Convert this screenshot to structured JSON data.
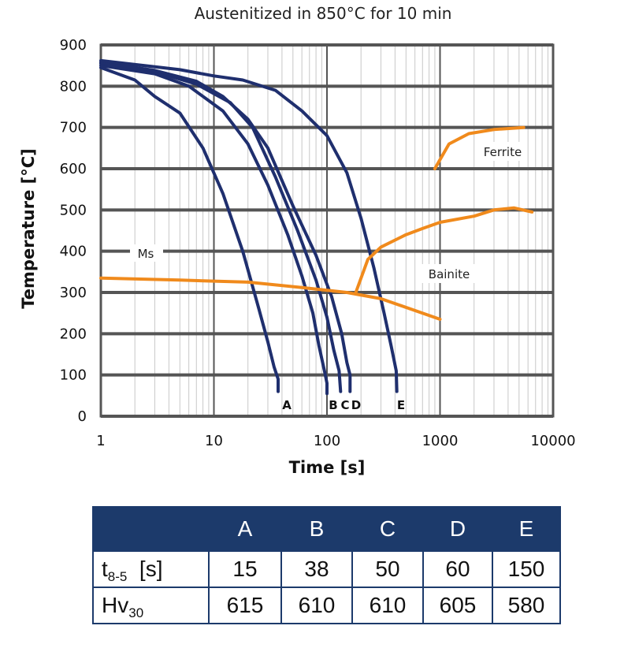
{
  "chart_data": {
    "type": "line",
    "title": "Austenitized in 850°C for 10 min",
    "xlabel": "Time [s]",
    "ylabel": "Temperature [°C]",
    "xscale": "log",
    "xlim": [
      1,
      10000
    ],
    "ylim": [
      0,
      900
    ],
    "x_ticks": [
      "1",
      "10",
      "100",
      "1000",
      "10000"
    ],
    "y_ticks": [
      "0",
      "100",
      "200",
      "300",
      "400",
      "500",
      "600",
      "700",
      "800",
      "900"
    ],
    "grid": true,
    "colors": {
      "cooling": "#1f2f6e",
      "transformation": "#f08a1c",
      "grid": "#555555"
    },
    "series": [
      {
        "name": "A",
        "role": "cooling",
        "points": [
          [
            1,
            845
          ],
          [
            2,
            815
          ],
          [
            3,
            775
          ],
          [
            5,
            735
          ],
          [
            8,
            650
          ],
          [
            12,
            540
          ],
          [
            18,
            400
          ],
          [
            25,
            260
          ],
          [
            30,
            180
          ],
          [
            34,
            120
          ],
          [
            37,
            90
          ],
          [
            37,
            60
          ]
        ]
      },
      {
        "name": "B",
        "role": "cooling",
        "points": [
          [
            1,
            850
          ],
          [
            3,
            830
          ],
          [
            6,
            800
          ],
          [
            12,
            740
          ],
          [
            20,
            660
          ],
          [
            30,
            560
          ],
          [
            45,
            440
          ],
          [
            60,
            340
          ],
          [
            75,
            250
          ],
          [
            85,
            170
          ],
          [
            95,
            110
          ],
          [
            100,
            80
          ],
          [
            100,
            55
          ]
        ]
      },
      {
        "name": "C",
        "role": "cooling",
        "points": [
          [
            1,
            855
          ],
          [
            3,
            835
          ],
          [
            7,
            805
          ],
          [
            14,
            760
          ],
          [
            22,
            700
          ],
          [
            35,
            580
          ],
          [
            55,
            450
          ],
          [
            80,
            330
          ],
          [
            100,
            240
          ],
          [
            115,
            160
          ],
          [
            128,
            110
          ],
          [
            132,
            60
          ]
        ]
      },
      {
        "name": "D",
        "role": "cooling",
        "points": [
          [
            1,
            858
          ],
          [
            3,
            838
          ],
          [
            7,
            812
          ],
          [
            12,
            775
          ],
          [
            20,
            720
          ],
          [
            30,
            650
          ],
          [
            50,
            510
          ],
          [
            80,
            390
          ],
          [
            110,
            290
          ],
          [
            135,
            200
          ],
          [
            150,
            130
          ],
          [
            160,
            100
          ],
          [
            160,
            60
          ]
        ]
      },
      {
        "name": "E",
        "role": "cooling",
        "points": [
          [
            1,
            862
          ],
          [
            5,
            840
          ],
          [
            10,
            825
          ],
          [
            18,
            815
          ],
          [
            35,
            790
          ],
          [
            60,
            740
          ],
          [
            100,
            680
          ],
          [
            150,
            590
          ],
          [
            200,
            480
          ],
          [
            260,
            360
          ],
          [
            320,
            250
          ],
          [
            370,
            170
          ],
          [
            410,
            110
          ],
          [
            415,
            60
          ]
        ]
      },
      {
        "name": "Ms",
        "role": "transformation",
        "points": [
          [
            1,
            335
          ],
          [
            5,
            330
          ],
          [
            20,
            325
          ],
          [
            60,
            312
          ],
          [
            150,
            300
          ],
          [
            300,
            285
          ],
          [
            1000,
            235
          ]
        ]
      },
      {
        "name": "Bainite",
        "role": "transformation",
        "points": [
          [
            180,
            300
          ],
          [
            230,
            380
          ],
          [
            300,
            410
          ],
          [
            500,
            440
          ],
          [
            700,
            455
          ],
          [
            1000,
            470
          ],
          [
            2000,
            485
          ],
          [
            3000,
            500
          ],
          [
            4500,
            505
          ],
          [
            6500,
            495
          ]
        ]
      },
      {
        "name": "Ferrite",
        "role": "transformation",
        "points": [
          [
            900,
            600
          ],
          [
            1200,
            660
          ],
          [
            1800,
            685
          ],
          [
            3000,
            695
          ],
          [
            5500,
            700
          ]
        ]
      }
    ],
    "annotations": [
      "Ms",
      "Bainite",
      "Ferrite",
      "A",
      "B",
      "C",
      "D",
      "E"
    ]
  },
  "table": {
    "headers": [
      "",
      "A",
      "B",
      "C",
      "D",
      "E"
    ],
    "rows": [
      {
        "label": "t",
        "sub": "8-5",
        "suffix": "  [s]",
        "values": [
          "15",
          "38",
          "50",
          "60",
          "150"
        ]
      },
      {
        "label": "Hv",
        "sub": "30",
        "suffix": "",
        "values": [
          "615",
          "610",
          "610",
          "605",
          "580"
        ]
      }
    ]
  }
}
